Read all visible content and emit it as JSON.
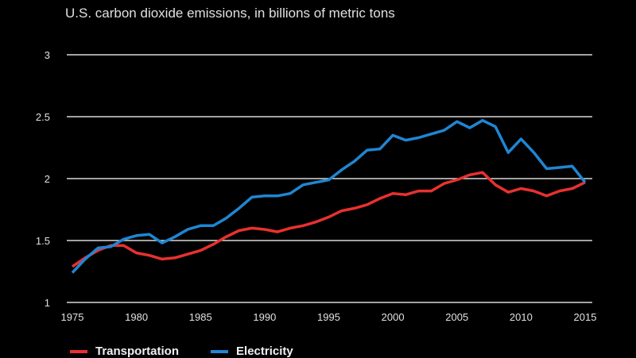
{
  "chart_data": {
    "type": "line",
    "title": "",
    "subtitle": "U.S. carbon dioxide emissions, in billions of metric tons",
    "xlabel": "",
    "ylabel": "",
    "x": [
      1975,
      1976,
      1977,
      1978,
      1979,
      1980,
      1981,
      1982,
      1983,
      1984,
      1985,
      1986,
      1987,
      1988,
      1989,
      1990,
      1991,
      1992,
      1993,
      1994,
      1995,
      1996,
      1997,
      1998,
      1999,
      2000,
      2001,
      2002,
      2003,
      2004,
      2005,
      2006,
      2007,
      2008,
      2009,
      2010,
      2011,
      2012,
      2013,
      2014,
      2015
    ],
    "xlim": [
      1975,
      2015
    ],
    "ylim": [
      1,
      3
    ],
    "xticks": [
      "1975",
      "1980",
      "1985",
      "1990",
      "1995",
      "2000",
      "2005",
      "2010",
      "2015"
    ],
    "xtick_values": [
      1975,
      1980,
      1985,
      1990,
      1995,
      2000,
      2005,
      2010,
      2015
    ],
    "yticks": [
      "1",
      "1.5",
      "2",
      "2.5",
      "3"
    ],
    "ytick_values": [
      1,
      1.5,
      2,
      2.5,
      3
    ],
    "grid": "horizontal",
    "legend_position": "bottom-left",
    "series": [
      {
        "name": "Transportation",
        "color": "#e8312f",
        "values": [
          1.29,
          1.36,
          1.42,
          1.46,
          1.46,
          1.4,
          1.38,
          1.35,
          1.36,
          1.39,
          1.42,
          1.47,
          1.53,
          1.58,
          1.6,
          1.59,
          1.57,
          1.6,
          1.62,
          1.65,
          1.69,
          1.74,
          1.76,
          1.79,
          1.84,
          1.88,
          1.87,
          1.9,
          1.9,
          1.96,
          1.99,
          2.03,
          2.05,
          1.95,
          1.89,
          1.92,
          1.9,
          1.86,
          1.9,
          1.92,
          1.97
        ]
      },
      {
        "name": "Electricity",
        "color": "#1f86d3",
        "values": [
          1.24,
          1.35,
          1.44,
          1.45,
          1.51,
          1.54,
          1.55,
          1.48,
          1.53,
          1.59,
          1.62,
          1.62,
          1.68,
          1.76,
          1.85,
          1.86,
          1.86,
          1.88,
          1.95,
          1.97,
          1.99,
          2.07,
          2.14,
          2.23,
          2.24,
          2.35,
          2.31,
          2.33,
          2.36,
          2.39,
          2.46,
          2.41,
          2.47,
          2.42,
          2.21,
          2.32,
          2.21,
          2.08,
          2.09,
          2.1,
          1.97
        ]
      }
    ]
  },
  "colors": {
    "background": "#000000",
    "gridline": "#d8d8d8",
    "text": "#e0e0e0"
  }
}
